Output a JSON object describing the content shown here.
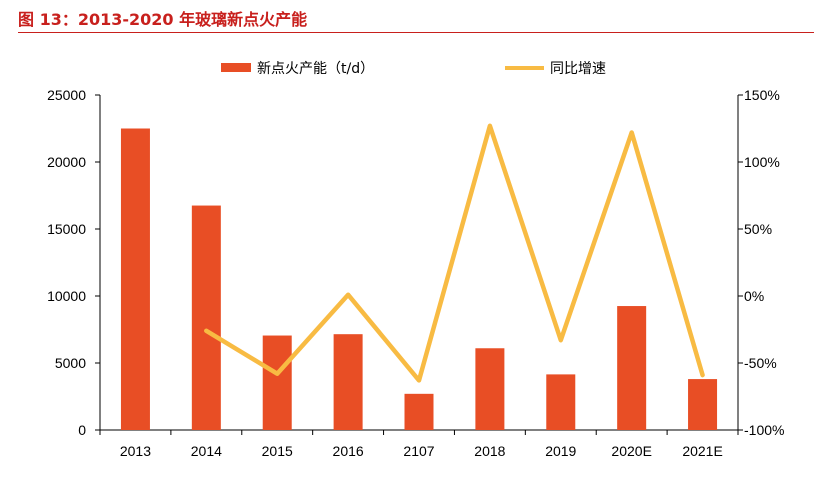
{
  "figure": {
    "title": "图 13：2013-2020 年玻璃新点火产能"
  },
  "colors": {
    "title": "#c8201d",
    "bar": "#e84e25",
    "line": "#f8bb43",
    "axis": "#000000"
  },
  "chart_data": {
    "type": "bar",
    "categories": [
      "2013",
      "2014",
      "2015",
      "2016",
      "2107",
      "2018",
      "2019",
      "2020E",
      "2021E"
    ],
    "series": [
      {
        "name": "新点火产能（t/d）",
        "type": "bar",
        "axis": "left",
        "values": [
          22500,
          16750,
          7050,
          7150,
          2700,
          6100,
          4150,
          9250,
          3800
        ]
      },
      {
        "name": "同比增速",
        "type": "line",
        "axis": "right",
        "values": [
          null,
          -26,
          -58,
          1,
          -63,
          127,
          -33,
          122,
          -59
        ]
      }
    ],
    "y_left": {
      "ylim": [
        0,
        25000
      ],
      "ticks": [
        0,
        5000,
        10000,
        15000,
        20000,
        25000
      ],
      "tick_labels": [
        "0",
        "5000",
        "10000",
        "15000",
        "20000",
        "25000"
      ]
    },
    "y_right": {
      "ylim": [
        -100,
        150
      ],
      "ticks": [
        -100,
        -50,
        0,
        50,
        100,
        150
      ],
      "tick_labels": [
        "-100%",
        "-50%",
        "0%",
        "50%",
        "100%",
        "150%"
      ]
    },
    "legend": "top",
    "grid": false
  }
}
